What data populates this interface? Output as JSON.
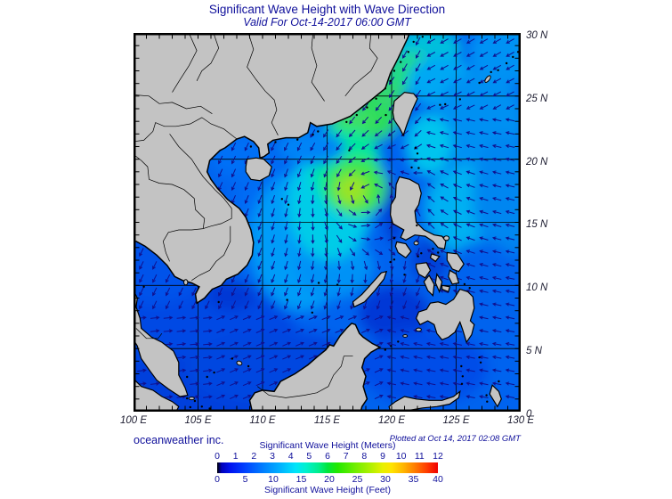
{
  "header": {
    "title": "Significant Wave Height with Wave Direction",
    "subtitle": "Valid For Oct-14-2017 06:00 GMT"
  },
  "map": {
    "x_axis": {
      "labels": [
        "100 E",
        "105 E",
        "110 E",
        "115 E",
        "120 E",
        "125 E",
        "130 E"
      ]
    },
    "y_axis": {
      "labels": [
        "30 N",
        "25 N",
        "20 N",
        "15 N",
        "10 N",
        "5 N",
        "0"
      ]
    },
    "land_color": "#c3c3c3",
    "arrow_color": "#10108e"
  },
  "footer": {
    "credit": "oceanweather inc.",
    "plotted": "Plotted at Oct 14, 2017 02:08 GMT"
  },
  "colorbar": {
    "title_meters": "Significant Wave Height (Meters)",
    "title_feet": "Significant Wave Height (Feet)",
    "meters_ticks": [
      "0",
      "1",
      "2",
      "3",
      "4",
      "5",
      "6",
      "7",
      "8",
      "9",
      "10",
      "11",
      "12"
    ],
    "feet_ticks": [
      "0",
      "5",
      "10",
      "15",
      "20",
      "25",
      "30",
      "35",
      "40"
    ],
    "stops": [
      [
        0,
        "#000000"
      ],
      [
        0.02,
        "#0000bb"
      ],
      [
        0.06,
        "#0014f0"
      ],
      [
        0.125,
        "#0040ff"
      ],
      [
        0.21,
        "#0080ff"
      ],
      [
        0.29,
        "#00b4ff"
      ],
      [
        0.355,
        "#00e4fa"
      ],
      [
        0.4,
        "#00f0d0"
      ],
      [
        0.46,
        "#00ee8c"
      ],
      [
        0.5,
        "#00e63c"
      ],
      [
        0.545,
        "#22e800"
      ],
      [
        0.625,
        "#70ee00"
      ],
      [
        0.7,
        "#b4f000"
      ],
      [
        0.75,
        "#e8f000"
      ],
      [
        0.79,
        "#ffe400"
      ],
      [
        0.845,
        "#ffb400"
      ],
      [
        0.9,
        "#ff7800"
      ],
      [
        0.95,
        "#ff3c00"
      ],
      [
        1,
        "#f00000"
      ]
    ]
  },
  "chart_data": {
    "type": "heatmap",
    "title": "Significant Wave Height with Wave Direction",
    "valid_time": "Oct-14-2017 06:00 GMT",
    "plotted_time": "Oct 14, 2017 02:08 GMT",
    "extent": {
      "lon_deg_e": [
        100,
        130
      ],
      "lat_deg_n": [
        0,
        30
      ]
    },
    "grid_interval_deg": 5,
    "scale": {
      "meters_range": [
        0,
        12
      ],
      "feet_range": [
        0,
        40
      ]
    },
    "overlay": "wave direction arrows on ~1 degree grid, cyclonic (counterclockwise) circulation centered near 118E 17N",
    "regions": [
      {
        "area": "storm peak west of Luzon (~117E 17.5N)",
        "hs_m": 6
      },
      {
        "area": "northeast South China Sea / Luzon Strait band",
        "hs_m": 4.5
      },
      {
        "area": "Taiwan Strait",
        "hs_m": 4
      },
      {
        "area": "central South China Sea",
        "hs_m": 3
      },
      {
        "area": "Philippine Sea (Pacific side)",
        "hs_m": 2.5
      },
      {
        "area": "Gulf of Tonkin",
        "hs_m": 2
      },
      {
        "area": "southern South China Sea / Gulf of Thailand",
        "hs_m": 1
      },
      {
        "area": "Sulu Sea / coastal shallows",
        "hs_m": 0.8
      }
    ]
  }
}
